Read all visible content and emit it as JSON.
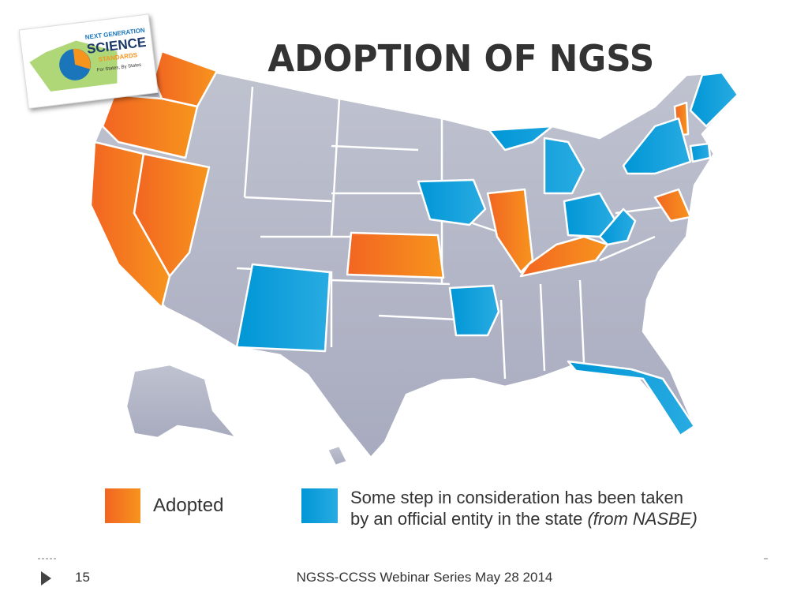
{
  "header": {
    "title": "ADOPTION OF NGSS"
  },
  "logo": {
    "line1": "NEXT GENERATION",
    "line2": "SCIENCE",
    "line3": "STANDARDS",
    "line4": "For States, By States"
  },
  "legend": {
    "adopted": "Adopted",
    "consideration_line1": "Some step in consideration has been taken",
    "consideration_line2": "by an official entity in the state",
    "consideration_source": "(from NASBE)"
  },
  "footer": {
    "page": "15",
    "text": "NGSS-CCSS Webinar Series May 28 2014"
  }
}
